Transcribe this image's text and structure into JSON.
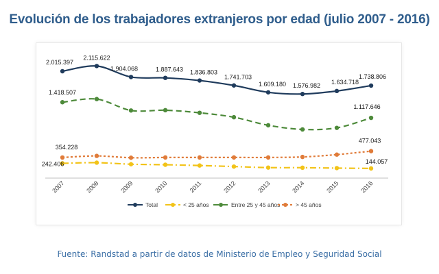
{
  "title": "Evolución de los trabajadores extranjeros por edad (julio 2007 - 2016)",
  "source": "Fuente: Randstad a partir de datos de Ministerio de Empleo y Seguridad Social",
  "chart_data": {
    "type": "line",
    "x": [
      "2007",
      "2008",
      "2009",
      "2010",
      "2011",
      "2012",
      "2013",
      "2014",
      "2015",
      "2016"
    ],
    "grid": false,
    "legend_position": "bottom",
    "series": [
      {
        "name": "Total",
        "color": "#1f3b5c",
        "dash": "solid",
        "values": [
          2015397,
          2115622,
          1904068,
          1887643,
          1836803,
          1741703,
          1609180,
          1576982,
          1634718,
          1738806
        ],
        "labels": [
          "2.015.397",
          "2.115.622",
          "1.904.068",
          "1.887.643",
          "1.836.803",
          "1.741.703",
          "1.609.180",
          "1.576.982",
          "1.634.718",
          "1.738.806"
        ]
      },
      {
        "name": "< 25 años",
        "color": "#f2c318",
        "dash": "dashdot",
        "values": [
          242406,
          255000,
          225000,
          215000,
          200000,
          180000,
          160000,
          158000,
          150000,
          144057
        ],
        "labels": [
          "242.406",
          "",
          "",
          "",
          "",
          "",
          "",
          "",
          "",
          "144.057"
        ]
      },
      {
        "name": "Entre 25 y 45 años",
        "color": "#4d8a3a",
        "dash": "dash",
        "values": [
          1418507,
          1480000,
          1260000,
          1265000,
          1215000,
          1130000,
          975000,
          895000,
          925000,
          1117646
        ],
        "labels": [
          "1.418.507",
          "",
          "",
          "",
          "",
          "",
          "",
          "",
          "",
          "1.117.646"
        ]
      },
      {
        "name": "> 45 años",
        "color": "#e07b39",
        "dash": "dot",
        "values": [
          354228,
          385000,
          350000,
          355000,
          355000,
          355000,
          355000,
          365000,
          410000,
          477043
        ],
        "labels": [
          "354.228",
          "",
          "",
          "",
          "",
          "",
          "",
          "",
          "",
          "477.043"
        ]
      }
    ]
  }
}
